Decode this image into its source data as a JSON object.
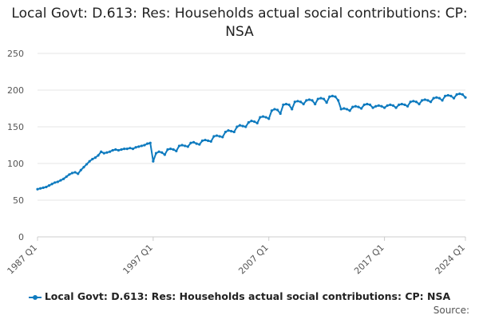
{
  "chart_data": {
    "type": "line",
    "title": "Local Govt: D.613: Res: Households actual social contributions: CP: NSA",
    "xlabel": "",
    "ylabel": "",
    "ylim": [
      0,
      250
    ],
    "yticks": [
      0,
      50,
      100,
      150,
      200,
      250
    ],
    "xticks": [
      "1987 Q1",
      "1997 Q1",
      "2007 Q1",
      "2017 Q1",
      "2024 Q1"
    ],
    "grid": true,
    "legend_position": "bottom",
    "line_color": "#0f7bbf",
    "series": [
      {
        "name": "Local Govt: D.613: Res: Households actual social contributions: CP: NSA",
        "points": [
          [
            "1987 Q1",
            65
          ],
          [
            "1987 Q2",
            66
          ],
          [
            "1987 Q3",
            67
          ],
          [
            "1987 Q4",
            68
          ],
          [
            "1988 Q1",
            70
          ],
          [
            "1988 Q2",
            72
          ],
          [
            "1988 Q3",
            74
          ],
          [
            "1988 Q4",
            75
          ],
          [
            "1989 Q1",
            77
          ],
          [
            "1989 Q2",
            79
          ],
          [
            "1989 Q3",
            82
          ],
          [
            "1989 Q4",
            85
          ],
          [
            "1990 Q1",
            87
          ],
          [
            "1990 Q2",
            88
          ],
          [
            "1990 Q3",
            86
          ],
          [
            "1990 Q4",
            91
          ],
          [
            "1991 Q1",
            95
          ],
          [
            "1991 Q2",
            99
          ],
          [
            "1991 Q3",
            103
          ],
          [
            "1991 Q4",
            106
          ],
          [
            "1992 Q1",
            108
          ],
          [
            "1992 Q2",
            111
          ],
          [
            "1992 Q3",
            116
          ],
          [
            "1992 Q4",
            114
          ],
          [
            "1993 Q1",
            115
          ],
          [
            "1993 Q2",
            116
          ],
          [
            "1993 Q3",
            118
          ],
          [
            "1993 Q4",
            119
          ],
          [
            "1994 Q1",
            118
          ],
          [
            "1994 Q2",
            119
          ],
          [
            "1994 Q3",
            120
          ],
          [
            "1994 Q4",
            120
          ],
          [
            "1995 Q1",
            121
          ],
          [
            "1995 Q2",
            120
          ],
          [
            "1995 Q3",
            122
          ],
          [
            "1995 Q4",
            123
          ],
          [
            "1996 Q1",
            124
          ],
          [
            "1996 Q2",
            125
          ],
          [
            "1996 Q3",
            127
          ],
          [
            "1996 Q4",
            128
          ],
          [
            "1997 Q1",
            103
          ],
          [
            "1997 Q2",
            114
          ],
          [
            "1997 Q3",
            116
          ],
          [
            "1997 Q4",
            115
          ],
          [
            "1998 Q1",
            112
          ],
          [
            "1998 Q2",
            119
          ],
          [
            "1998 Q3",
            120
          ],
          [
            "1998 Q4",
            119
          ],
          [
            "1999 Q1",
            117
          ],
          [
            "1999 Q2",
            124
          ],
          [
            "1999 Q3",
            125
          ],
          [
            "1999 Q4",
            124
          ],
          [
            "2000 Q1",
            123
          ],
          [
            "2000 Q2",
            128
          ],
          [
            "2000 Q3",
            129
          ],
          [
            "2000 Q4",
            127
          ],
          [
            "2001 Q1",
            126
          ],
          [
            "2001 Q2",
            131
          ],
          [
            "2001 Q3",
            132
          ],
          [
            "2001 Q4",
            131
          ],
          [
            "2002 Q1",
            130
          ],
          [
            "2002 Q2",
            137
          ],
          [
            "2002 Q3",
            138
          ],
          [
            "2002 Q4",
            137
          ],
          [
            "2003 Q1",
            136
          ],
          [
            "2003 Q2",
            143
          ],
          [
            "2003 Q3",
            145
          ],
          [
            "2003 Q4",
            144
          ],
          [
            "2004 Q1",
            143
          ],
          [
            "2004 Q2",
            150
          ],
          [
            "2004 Q3",
            152
          ],
          [
            "2004 Q4",
            151
          ],
          [
            "2005 Q1",
            150
          ],
          [
            "2005 Q2",
            156
          ],
          [
            "2005 Q3",
            158
          ],
          [
            "2005 Q4",
            157
          ],
          [
            "2006 Q1",
            155
          ],
          [
            "2006 Q2",
            163
          ],
          [
            "2006 Q3",
            164
          ],
          [
            "2006 Q4",
            163
          ],
          [
            "2007 Q1",
            161
          ],
          [
            "2007 Q2",
            172
          ],
          [
            "2007 Q3",
            174
          ],
          [
            "2007 Q4",
            173
          ],
          [
            "2008 Q1",
            168
          ],
          [
            "2008 Q2",
            180
          ],
          [
            "2008 Q3",
            181
          ],
          [
            "2008 Q4",
            180
          ],
          [
            "2009 Q1",
            174
          ],
          [
            "2009 Q2",
            184
          ],
          [
            "2009 Q3",
            185
          ],
          [
            "2009 Q4",
            184
          ],
          [
            "2010 Q1",
            181
          ],
          [
            "2010 Q2",
            186
          ],
          [
            "2010 Q3",
            187
          ],
          [
            "2010 Q4",
            186
          ],
          [
            "2011 Q1",
            181
          ],
          [
            "2011 Q2",
            188
          ],
          [
            "2011 Q3",
            189
          ],
          [
            "2011 Q4",
            188
          ],
          [
            "2012 Q1",
            183
          ],
          [
            "2012 Q2",
            191
          ],
          [
            "2012 Q3",
            192
          ],
          [
            "2012 Q4",
            191
          ],
          [
            "2013 Q1",
            186
          ],
          [
            "2013 Q2",
            174
          ],
          [
            "2013 Q3",
            175
          ],
          [
            "2013 Q4",
            174
          ],
          [
            "2014 Q1",
            172
          ],
          [
            "2014 Q2",
            177
          ],
          [
            "2014 Q3",
            178
          ],
          [
            "2014 Q4",
            177
          ],
          [
            "2015 Q1",
            175
          ],
          [
            "2015 Q2",
            180
          ],
          [
            "2015 Q3",
            181
          ],
          [
            "2015 Q4",
            180
          ],
          [
            "2016 Q1",
            176
          ],
          [
            "2016 Q2",
            178
          ],
          [
            "2016 Q3",
            179
          ],
          [
            "2016 Q4",
            178
          ],
          [
            "2017 Q1",
            176
          ],
          [
            "2017 Q2",
            179
          ],
          [
            "2017 Q3",
            180
          ],
          [
            "2017 Q4",
            179
          ],
          [
            "2018 Q1",
            176
          ],
          [
            "2018 Q2",
            180
          ],
          [
            "2018 Q3",
            181
          ],
          [
            "2018 Q4",
            180
          ],
          [
            "2019 Q1",
            178
          ],
          [
            "2019 Q2",
            184
          ],
          [
            "2019 Q3",
            185
          ],
          [
            "2019 Q4",
            184
          ],
          [
            "2020 Q1",
            181
          ],
          [
            "2020 Q2",
            186
          ],
          [
            "2020 Q3",
            187
          ],
          [
            "2020 Q4",
            186
          ],
          [
            "2021 Q1",
            184
          ],
          [
            "2021 Q2",
            189
          ],
          [
            "2021 Q3",
            190
          ],
          [
            "2021 Q4",
            189
          ],
          [
            "2022 Q1",
            186
          ],
          [
            "2022 Q2",
            192
          ],
          [
            "2022 Q3",
            193
          ],
          [
            "2022 Q4",
            192
          ],
          [
            "2023 Q1",
            189
          ],
          [
            "2023 Q2",
            194
          ],
          [
            "2023 Q3",
            195
          ],
          [
            "2023 Q4",
            194
          ],
          [
            "2024 Q1",
            190
          ]
        ]
      }
    ]
  },
  "legend": {
    "label": "Local Govt: D.613: Res: Households actual social contributions: CP: NSA"
  },
  "source": {
    "label": "Source:"
  }
}
